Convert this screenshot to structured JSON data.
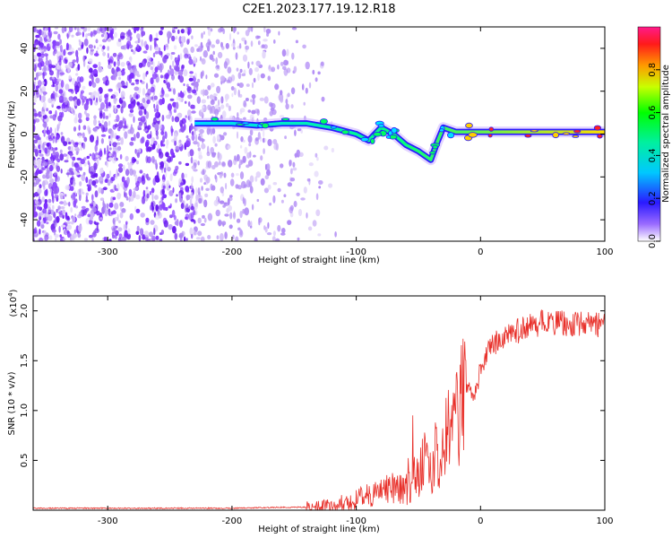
{
  "title": "C2E1.2023.177.19.12.R18",
  "colors": {
    "spectrogram_weak": "#d8c8f5",
    "spectrogram_mid": "#7b2cff",
    "snr_line": "#e8302a",
    "axis": "#000000"
  },
  "chart_data": [
    {
      "type": "heatmap",
      "xlabel": "Height of straight line (km)",
      "ylabel": "Frequency (Hz)",
      "xlim": [
        -360,
        100
      ],
      "ylim": [
        -50,
        50
      ],
      "xticks": [
        -300,
        -200,
        -100,
        0,
        100
      ],
      "yticks": [
        -40,
        -20,
        0,
        20,
        40
      ],
      "grid": false,
      "colorbar": {
        "label": "Normalized spectral amplitude",
        "range": [
          0.0,
          1.0
        ],
        "ticks": [
          0.0,
          0.2,
          0.4,
          0.6,
          0.8
        ],
        "colormap": "rainbow (purple-blue-cyan-green-yellow-red-magenta)"
      },
      "signal_trace": [
        {
          "x": -230,
          "y": 5
        },
        {
          "x": -200,
          "y": 5
        },
        {
          "x": -180,
          "y": 4
        },
        {
          "x": -160,
          "y": 5
        },
        {
          "x": -140,
          "y": 5
        },
        {
          "x": -120,
          "y": 3
        },
        {
          "x": -100,
          "y": 0
        },
        {
          "x": -90,
          "y": -3
        },
        {
          "x": -80,
          "y": 3
        },
        {
          "x": -70,
          "y": 0
        },
        {
          "x": -60,
          "y": -5
        },
        {
          "x": -50,
          "y": -8
        },
        {
          "x": -40,
          "y": -12
        },
        {
          "x": -35,
          "y": -4
        },
        {
          "x": -30,
          "y": 3
        },
        {
          "x": -20,
          "y": 1
        },
        {
          "x": 0,
          "y": 1
        },
        {
          "x": 20,
          "y": 1
        },
        {
          "x": 40,
          "y": 1
        },
        {
          "x": 60,
          "y": 1
        },
        {
          "x": 80,
          "y": 1
        },
        {
          "x": 100,
          "y": 1
        }
      ],
      "noise_extent_x": [
        -360,
        -130
      ]
    },
    {
      "type": "line",
      "xlabel": "Height of straight line (km)",
      "ylabel": "SNR (10 * v/v)",
      "y_multiplier_label": "(x10",
      "y_multiplier_exp": "4",
      "xlim": [
        -360,
        100
      ],
      "ylim": [
        0,
        2.15
      ],
      "xticks": [
        -300,
        -200,
        -100,
        0,
        100
      ],
      "yticks": [
        0.5,
        1.0,
        1.5,
        2.0
      ],
      "ytick_labels": [
        "0.5",
        "1.0",
        "1.5",
        "2.0"
      ],
      "grid": false,
      "series": [
        {
          "x": [
            -360,
            -300,
            -250,
            -200,
            -150,
            -130,
            -120,
            -110,
            -100,
            -90,
            -80,
            -70,
            -60,
            -50,
            -45,
            -40,
            -35,
            -30,
            -25,
            -20,
            -15,
            -10,
            -5,
            0,
            5,
            10,
            20,
            30,
            40,
            50,
            60,
            70,
            80,
            90,
            100
          ],
          "y": [
            0.02,
            0.02,
            0.02,
            0.02,
            0.03,
            0.03,
            0.05,
            0.07,
            0.1,
            0.15,
            0.2,
            0.25,
            0.2,
            0.35,
            0.5,
            0.4,
            0.6,
            0.55,
            0.9,
            1.0,
            1.1,
            1.25,
            1.15,
            1.4,
            1.55,
            1.65,
            1.75,
            1.8,
            1.85,
            1.88,
            1.87,
            1.88,
            1.88,
            1.87,
            1.85
          ]
        }
      ]
    }
  ]
}
